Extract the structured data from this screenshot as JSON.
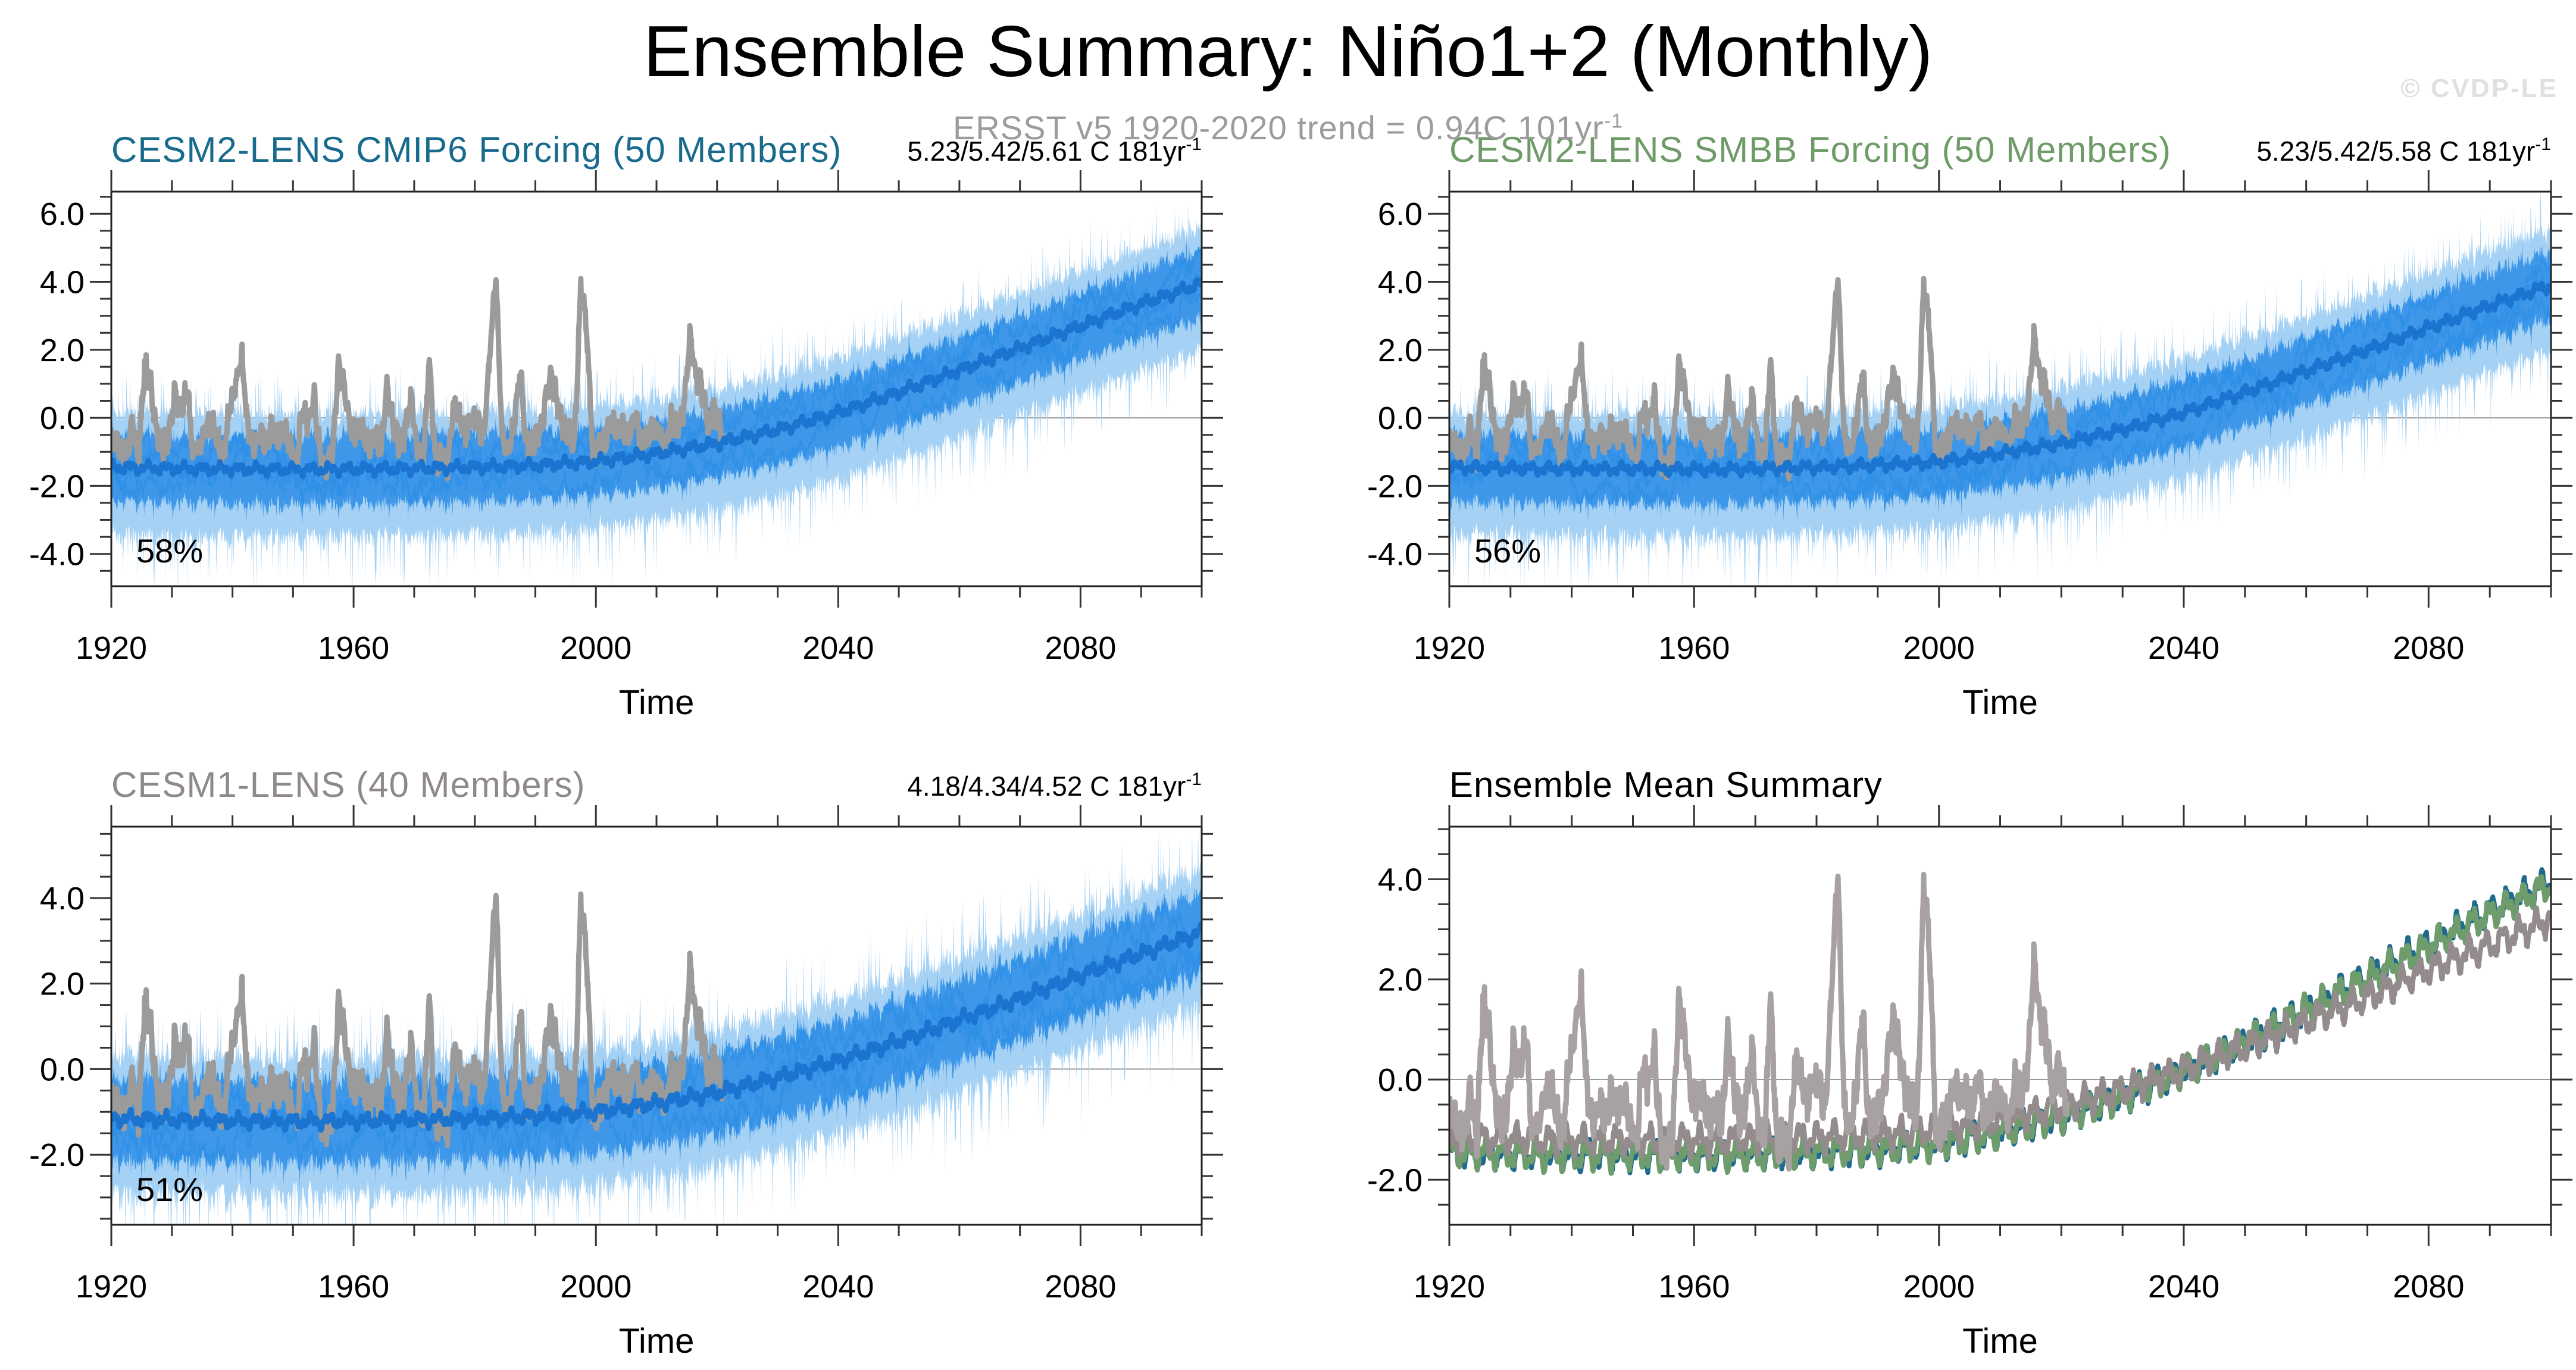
{
  "header": {
    "title": "Ensemble Summary: Niño1+2 (Monthly)",
    "obs_trend": {
      "text": "ERSST v5 1920-2020 trend = 0.94C 101yr",
      "exp": "-1"
    },
    "watermark": "© CVDP-LE"
  },
  "colors": {
    "band_blue": "#A4D1F4",
    "member_blue": "#3E97E9",
    "mean_blue": "#1B74D0",
    "obs_gray": "#9B9B9B",
    "obs_gray_summary": "#A8A1A1",
    "teal": "#1F6B8E",
    "green": "#6F9C6D",
    "cesm1_mean_gray": "#948C8C",
    "title_teal": "#186B8D",
    "title_green": "#6F9B68",
    "title_gray": "#8F8989",
    "subtitle_gray": "#9C9C9C",
    "watermark_gray": "#E0E0E0",
    "frame": "#222222",
    "tick": "#333333",
    "zero_line": "#999999",
    "text_black": "#000000"
  },
  "obs": {
    "label": "ERSST v5",
    "start_year": 1920,
    "end_year": 2021,
    "annual_values": [
      -0.7,
      -0.9,
      -1.1,
      -0.2,
      -1.2,
      1.6,
      0.9,
      -0.4,
      -0.9,
      -0.5,
      0.7,
      0.2,
      0.9,
      -1.0,
      -0.8,
      -0.3,
      -0.1,
      -0.7,
      -1.2,
      0.3,
      0.9,
      1.9,
      -0.3,
      -0.9,
      -0.4,
      -0.8,
      -0.2,
      -0.6,
      -0.3,
      -0.8,
      -1.4,
      0.2,
      -0.1,
      0.6,
      -1.1,
      -1.5,
      -1.0,
      1.5,
      0.8,
      -0.3,
      -0.4,
      -0.5,
      -0.8,
      -0.4,
      -0.9,
      0.9,
      -0.1,
      -0.8,
      -0.4,
      0.6,
      -0.9,
      -1.3,
      1.8,
      -1.3,
      -1.2,
      -1.4,
      0.4,
      0.1,
      -0.5,
      0.0,
      -0.2,
      -0.6,
      1.9,
      4.3,
      -0.5,
      -0.9,
      -0.3,
      1.5,
      -0.9,
      -0.7,
      -0.4,
      0.3,
      1.2,
      0.6,
      -0.2,
      -0.5,
      -0.7,
      4.0,
      2.6,
      -1.1,
      -0.9,
      -0.6,
      -0.1,
      -0.4,
      -0.3,
      -0.6,
      0.2,
      -0.9,
      -0.6,
      -0.2,
      -0.5,
      -0.8,
      0.1,
      -0.4,
      0.3,
      2.4,
      1.2,
      0.9,
      -0.3,
      0.4,
      -0.3,
      -0.9
    ]
  },
  "chart_data": [
    {
      "key": "cmip6",
      "type": "line",
      "title": "CESM2-LENS CMIP6 Forcing (50 Members)",
      "title_color": "#186B8D",
      "trend": "5.23/5.42/5.61 C 181yr",
      "trend_exp": "-1",
      "agreement_pct": "58%",
      "xlabel": "Time",
      "x_range": [
        1920,
        2100
      ],
      "x_major": [
        1920,
        1960,
        2000,
        2040,
        2080
      ],
      "x_minor_step": 10,
      "y_range": [
        -4.95,
        6.65
      ],
      "y_major": [
        "6.0",
        "4.0",
        "2.0",
        "0.0",
        "-2.0",
        "-4.0"
      ],
      "y_minor_step": 0.5,
      "zero_line": true,
      "show_obs": true,
      "ensemble": {
        "members": 50,
        "seed": 11,
        "mean_anchors": [
          [
            1920,
            -1.45
          ],
          [
            1935,
            -1.5
          ],
          [
            1950,
            -1.52
          ],
          [
            1965,
            -1.5
          ],
          [
            1980,
            -1.45
          ],
          [
            1990,
            -1.4
          ],
          [
            2000,
            -1.28
          ],
          [
            2010,
            -1.05
          ],
          [
            2020,
            -0.75
          ],
          [
            2030,
            -0.35
          ],
          [
            2040,
            0.15
          ],
          [
            2050,
            0.75
          ],
          [
            2060,
            1.4
          ],
          [
            2070,
            2.05
          ],
          [
            2080,
            2.7
          ],
          [
            2090,
            3.35
          ],
          [
            2100,
            3.95
          ]
        ],
        "outer_up": 1.45,
        "outer_dn": 1.8,
        "inner_up": 0.85,
        "inner_dn": 0.9
      }
    },
    {
      "key": "smbb",
      "type": "line",
      "title": "CESM2-LENS SMBB Forcing (50 Members)",
      "title_color": "#6F9B68",
      "trend": "5.23/5.42/5.58 C 181yr",
      "trend_exp": "-1",
      "agreement_pct": "56%",
      "xlabel": "Time",
      "x_range": [
        1920,
        2100
      ],
      "x_major": [
        1920,
        1960,
        2000,
        2040,
        2080
      ],
      "x_minor_step": 10,
      "y_range": [
        -4.95,
        6.65
      ],
      "y_major": [
        "6.0",
        "4.0",
        "2.0",
        "0.0",
        "-2.0",
        "-4.0"
      ],
      "y_minor_step": 0.5,
      "zero_line": true,
      "show_obs": true,
      "ensemble": {
        "members": 50,
        "seed": 23,
        "mean_anchors": [
          [
            1920,
            -1.45
          ],
          [
            1935,
            -1.5
          ],
          [
            1950,
            -1.5
          ],
          [
            1965,
            -1.52
          ],
          [
            1980,
            -1.45
          ],
          [
            1990,
            -1.38
          ],
          [
            2000,
            -1.3
          ],
          [
            2010,
            -1.05
          ],
          [
            2020,
            -0.75
          ],
          [
            2030,
            -0.35
          ],
          [
            2040,
            0.15
          ],
          [
            2050,
            0.75
          ],
          [
            2060,
            1.38
          ],
          [
            2070,
            2.0
          ],
          [
            2080,
            2.65
          ],
          [
            2090,
            3.3
          ],
          [
            2100,
            3.9
          ]
        ],
        "outer_up": 1.45,
        "outer_dn": 1.8,
        "inner_up": 0.85,
        "inner_dn": 0.9
      }
    },
    {
      "key": "cesm1",
      "type": "line",
      "title": "CESM1-LENS (40 Members)",
      "title_color": "#8F8989",
      "trend": "4.18/4.34/4.52 C 181yr",
      "trend_exp": "-1",
      "agreement_pct": "51%",
      "xlabel": "Time",
      "x_range": [
        1920,
        2100
      ],
      "x_major": [
        1920,
        1960,
        2000,
        2040,
        2080
      ],
      "x_minor_step": 10,
      "y_range": [
        -3.64,
        5.67
      ],
      "y_major": [
        "4.0",
        "2.0",
        "0.0",
        "-2.0"
      ],
      "y_minor_step": 0.5,
      "zero_line": true,
      "show_obs": true,
      "ensemble": {
        "members": 40,
        "seed": 37,
        "mean_anchors": [
          [
            1920,
            -1.15
          ],
          [
            1935,
            -1.2
          ],
          [
            1950,
            -1.22
          ],
          [
            1965,
            -1.2
          ],
          [
            1980,
            -1.15
          ],
          [
            1990,
            -1.1
          ],
          [
            2000,
            -1.0
          ],
          [
            2010,
            -0.8
          ],
          [
            2020,
            -0.55
          ],
          [
            2030,
            -0.2
          ],
          [
            2040,
            0.2
          ],
          [
            2050,
            0.65
          ],
          [
            2060,
            1.15
          ],
          [
            2070,
            1.65
          ],
          [
            2080,
            2.2
          ],
          [
            2090,
            2.7
          ],
          [
            2100,
            3.2
          ]
        ],
        "outer_up": 1.3,
        "outer_dn": 1.55,
        "inner_up": 0.8,
        "inner_dn": 0.85
      }
    },
    {
      "key": "summary",
      "type": "line",
      "title": "Ensemble Mean Summary",
      "title_color": "#000000",
      "trend": null,
      "trend_exp": null,
      "agreement_pct": null,
      "xlabel": "Time",
      "x_range": [
        1920,
        2100
      ],
      "x_major": [
        1920,
        1960,
        2000,
        2040,
        2080
      ],
      "x_minor_step": 10,
      "y_range": [
        -2.9,
        5.05
      ],
      "y_major": [
        "4.0",
        "2.0",
        "0.0",
        "-2.0"
      ],
      "y_minor_step": 0.5,
      "zero_line": true,
      "show_obs": true,
      "series": [
        {
          "name": "CESM2-LENS CMIP6 Forcing",
          "source": "cmip6",
          "color": "#1F6B8E",
          "seed": 51
        },
        {
          "name": "CESM2-LENS SMBB Forcing",
          "source": "smbb",
          "color": "#6F9C6D",
          "seed": 63
        },
        {
          "name": "CESM1-LENS",
          "source": "cesm1",
          "color": "#948C8C",
          "seed": 77
        }
      ]
    }
  ]
}
